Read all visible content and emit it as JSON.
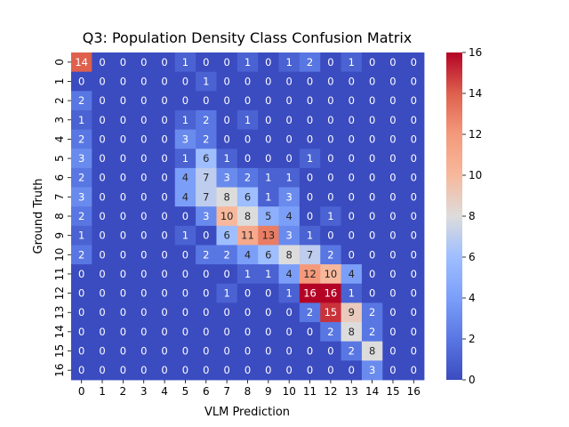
{
  "chart_data": {
    "type": "heatmap",
    "title": "Q3: Population Density Class Confusion Matrix",
    "xlabel": "VLM Prediction",
    "ylabel": "Ground Truth",
    "x_categories": [
      "0",
      "1",
      "2",
      "3",
      "4",
      "5",
      "6",
      "7",
      "8",
      "9",
      "10",
      "11",
      "12",
      "13",
      "14",
      "15",
      "16"
    ],
    "y_categories": [
      "0",
      "1",
      "2",
      "3",
      "4",
      "5",
      "6",
      "7",
      "8",
      "9",
      "10",
      "11",
      "12",
      "13",
      "14",
      "15",
      "16"
    ],
    "matrix": [
      [
        14,
        0,
        0,
        0,
        0,
        1,
        0,
        0,
        1,
        0,
        1,
        2,
        0,
        1,
        0,
        0,
        0
      ],
      [
        0,
        0,
        0,
        0,
        0,
        0,
        1,
        0,
        0,
        0,
        0,
        0,
        0,
        0,
        0,
        0,
        0
      ],
      [
        2,
        0,
        0,
        0,
        0,
        0,
        0,
        0,
        0,
        0,
        0,
        0,
        0,
        0,
        0,
        0,
        0
      ],
      [
        1,
        0,
        0,
        0,
        0,
        1,
        2,
        0,
        1,
        0,
        0,
        0,
        0,
        0,
        0,
        0,
        0
      ],
      [
        2,
        0,
        0,
        0,
        0,
        3,
        2,
        0,
        0,
        0,
        0,
        0,
        0,
        0,
        0,
        0,
        0
      ],
      [
        3,
        0,
        0,
        0,
        0,
        1,
        6,
        1,
        0,
        0,
        0,
        1,
        0,
        0,
        0,
        0,
        0
      ],
      [
        2,
        0,
        0,
        0,
        0,
        4,
        7,
        3,
        2,
        1,
        1,
        0,
        0,
        0,
        0,
        0,
        0
      ],
      [
        3,
        0,
        0,
        0,
        0,
        4,
        7,
        8,
        6,
        1,
        3,
        0,
        0,
        0,
        0,
        0,
        0
      ],
      [
        2,
        0,
        0,
        0,
        0,
        0,
        3,
        10,
        8,
        5,
        4,
        0,
        1,
        0,
        0,
        0,
        0
      ],
      [
        1,
        0,
        0,
        0,
        0,
        1,
        0,
        6,
        11,
        13,
        3,
        1,
        0,
        0,
        0,
        0,
        0
      ],
      [
        2,
        0,
        0,
        0,
        0,
        0,
        2,
        2,
        4,
        6,
        8,
        7,
        2,
        0,
        0,
        0,
        0
      ],
      [
        0,
        0,
        0,
        0,
        0,
        0,
        0,
        0,
        1,
        1,
        4,
        12,
        10,
        4,
        0,
        0,
        0
      ],
      [
        0,
        0,
        0,
        0,
        0,
        0,
        0,
        1,
        0,
        0,
        1,
        16,
        16,
        1,
        0,
        0,
        0
      ],
      [
        0,
        0,
        0,
        0,
        0,
        0,
        0,
        0,
        0,
        0,
        0,
        2,
        15,
        9,
        2,
        0,
        0
      ],
      [
        0,
        0,
        0,
        0,
        0,
        0,
        0,
        0,
        0,
        0,
        0,
        0,
        2,
        8,
        2,
        0,
        0
      ],
      [
        0,
        0,
        0,
        0,
        0,
        0,
        0,
        0,
        0,
        0,
        0,
        0,
        0,
        2,
        8,
        0,
        0
      ],
      [
        0,
        0,
        0,
        0,
        0,
        0,
        0,
        0,
        0,
        0,
        0,
        0,
        0,
        0,
        3,
        0,
        0
      ]
    ],
    "colormap": "coolwarm",
    "vmin": 0,
    "vmax": 16,
    "colorbar_ticks": [
      "0",
      "2",
      "4",
      "6",
      "8",
      "10",
      "12",
      "14",
      "16"
    ]
  }
}
